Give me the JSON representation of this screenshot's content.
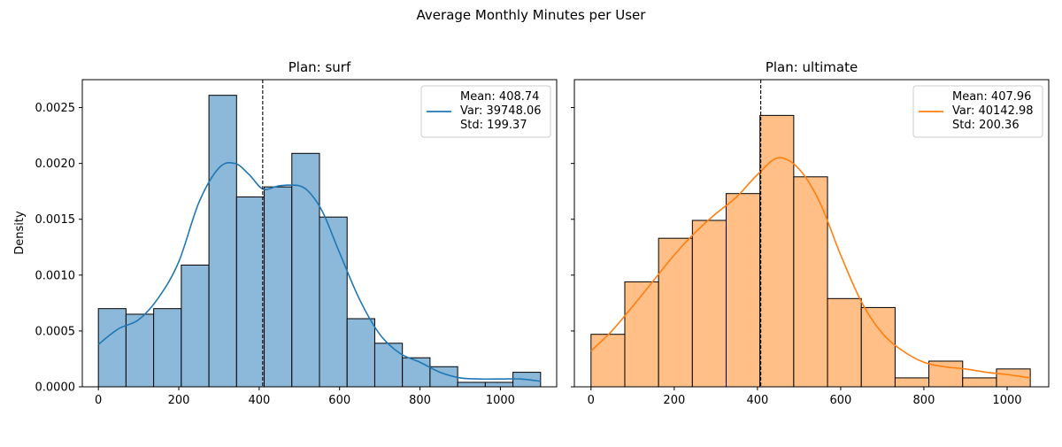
{
  "figure": {
    "suptitle": "Average Monthly Minutes per User",
    "ylabel": "Density"
  },
  "chart_data": [
    {
      "type": "bar",
      "subtype": "histogram-with-kde",
      "title": "Plan: surf",
      "xlabel": "",
      "ylabel": "Density",
      "color": "#1f77b4",
      "bar_fill": "#8cb8da",
      "bin_edges": [
        0,
        68.75,
        137.5,
        206.25,
        275,
        343.75,
        412.5,
        481.25,
        550,
        618.75,
        687.5,
        756.25,
        825,
        893.75,
        962.5,
        1031.25,
        1100
      ],
      "values": [
        0.0007,
        0.00065,
        0.0007,
        0.00109,
        0.00261,
        0.0017,
        0.00179,
        0.00209,
        0.00152,
        0.00061,
        0.00039,
        0.00026,
        0.00018,
        4e-05,
        4e-05,
        0.00013
      ],
      "kde": {
        "x": [
          0,
          50,
          100,
          150,
          200,
          250,
          300,
          340,
          375,
          410,
          450,
          500,
          530,
          560,
          600,
          650,
          700,
          750,
          800,
          850,
          900,
          950,
          1000,
          1050,
          1100
        ],
        "y": [
          0.00038,
          0.00052,
          0.0006,
          0.0008,
          0.00112,
          0.00165,
          0.00196,
          0.002,
          0.0019,
          0.00177,
          0.0018,
          0.0018,
          0.00172,
          0.00155,
          0.0012,
          0.00078,
          0.00047,
          0.0003,
          0.00022,
          0.00013,
          8e-05,
          7e-05,
          7e-05,
          7e-05,
          5e-05
        ]
      },
      "mean_line_x": 408.74,
      "xlim": [
        -40,
        1140
      ],
      "ylim": [
        0,
        0.00275
      ],
      "xticks": [
        0,
        200,
        400,
        600,
        800,
        1000
      ],
      "yticks": [
        0,
        0.0005,
        0.001,
        0.0015,
        0.002,
        0.0025
      ],
      "ytick_labels": [
        "0.0000",
        "0.0005",
        "0.0010",
        "0.0015",
        "0.0020",
        "0.0025"
      ],
      "legend": {
        "placement": "top-right",
        "lines": [
          "Mean: 408.74",
          "Var: 39748.06",
          "Std: 199.37"
        ]
      }
    },
    {
      "type": "bar",
      "subtype": "histogram-with-kde",
      "title": "Plan: ultimate",
      "xlabel": "",
      "ylabel": "",
      "color": "#ff7f0e",
      "bar_fill": "#ffbf87",
      "bin_edges": [
        0,
        81.2,
        162.4,
        243.6,
        324.8,
        406,
        487.2,
        568.4,
        649.6,
        730.8,
        812,
        893.2,
        974.4,
        1055.6
      ],
      "values": [
        0.00047,
        0.00094,
        0.00133,
        0.00149,
        0.00173,
        0.00243,
        0.00188,
        0.00079,
        0.00071,
        8e-05,
        0.00023,
        8e-05,
        0.00016
      ],
      "kde": {
        "x": [
          0,
          50,
          100,
          150,
          200,
          250,
          300,
          350,
          400,
          450,
          500,
          550,
          600,
          650,
          700,
          750,
          800,
          850,
          900,
          950,
          1000,
          1055.6
        ],
        "y": [
          0.00032,
          0.0005,
          0.00072,
          0.00095,
          0.00118,
          0.00138,
          0.00155,
          0.0017,
          0.0019,
          0.00205,
          0.00195,
          0.00165,
          0.00118,
          0.00076,
          0.00048,
          0.00032,
          0.00022,
          0.00018,
          0.00016,
          0.00013,
          0.00011,
          8e-05
        ]
      },
      "mean_line_x": 407.96,
      "xlim": [
        -40,
        1100
      ],
      "ylim": [
        0,
        0.00275
      ],
      "xticks": [
        0,
        200,
        400,
        600,
        800,
        1000
      ],
      "yticks": [
        0,
        0.0005,
        0.001,
        0.0015,
        0.002,
        0.0025
      ],
      "ytick_labels": [
        "",
        "",
        "",
        "",
        "",
        ""
      ],
      "legend": {
        "placement": "top-right",
        "lines": [
          "Mean: 407.96",
          "Var: 40142.98",
          "Std: 200.36"
        ]
      }
    }
  ]
}
